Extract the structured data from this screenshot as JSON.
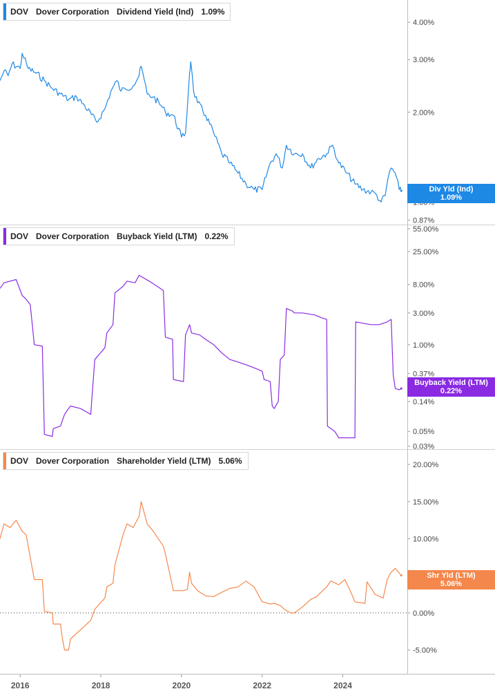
{
  "chart_data": [
    {
      "type": "line",
      "ticker": "DOV",
      "company": "Dover Corporation",
      "metric": "Dividend Yield (Ind)",
      "current_value": "1.09%",
      "color": "#1e88e5",
      "scale": "log",
      "badge": {
        "line1": "Div Yld (Ind)",
        "line2": "1.09%"
      },
      "y_ticks": [
        "4.00%",
        "3.00%",
        "2.00%",
        "1.00%",
        "0.87%"
      ],
      "ylim": [
        0.84,
        4.6
      ],
      "xlim": [
        2015.5,
        2025.6
      ],
      "series": [
        {
          "x": [
            2015.5,
            2015.6,
            2015.7,
            2015.8,
            2016.0,
            2016.05,
            2016.2,
            2016.4,
            2016.6,
            2016.8,
            2017.0,
            2017.2,
            2017.4,
            2017.6,
            2017.9,
            2018.1,
            2018.25,
            2018.4,
            2018.5,
            2018.6,
            2018.8,
            2018.95,
            2019.0,
            2019.15,
            2019.3,
            2019.5,
            2019.6,
            2019.8,
            2020.0,
            2020.1,
            2020.2,
            2020.23,
            2020.3,
            2020.4,
            2020.6,
            2020.8,
            2021.0,
            2021.2,
            2021.4,
            2021.6,
            2021.8,
            2022.0,
            2022.2,
            2022.35,
            2022.5,
            2022.6,
            2022.8,
            2023.0,
            2023.2,
            2023.4,
            2023.6,
            2023.75,
            2023.9,
            2024.1,
            2024.3,
            2024.5,
            2024.7,
            2024.8,
            2024.95,
            2025.05,
            2025.12,
            2025.2,
            2025.3,
            2025.4,
            2025.45
          ],
          "values": [
            2.55,
            2.75,
            2.65,
            2.9,
            2.8,
            3.15,
            2.8,
            2.7,
            2.55,
            2.4,
            2.3,
            2.2,
            2.25,
            2.1,
            1.85,
            2.05,
            2.35,
            2.55,
            2.35,
            2.4,
            2.45,
            2.65,
            2.85,
            2.3,
            2.25,
            2.1,
            2.0,
            1.95,
            1.65,
            1.7,
            2.7,
            2.95,
            2.35,
            2.15,
            1.95,
            1.7,
            1.45,
            1.35,
            1.25,
            1.15,
            1.1,
            1.1,
            1.35,
            1.45,
            1.3,
            1.55,
            1.45,
            1.45,
            1.3,
            1.4,
            1.45,
            1.55,
            1.35,
            1.25,
            1.15,
            1.1,
            1.08,
            1.07,
            1.0,
            1.05,
            1.2,
            1.3,
            1.25,
            1.1,
            1.09
          ]
        }
      ]
    },
    {
      "type": "line",
      "ticker": "DOV",
      "company": "Dover Corporation",
      "metric": "Buyback Yield (LTM)",
      "current_value": "0.22%",
      "color": "#8a2be2",
      "scale": "log",
      "badge": {
        "line1": "Buyback Yield (LTM)",
        "line2": "0.22%"
      },
      "y_ticks": [
        "55.00%",
        "25.00%",
        "8.00%",
        "3.00%",
        "1.00%",
        "0.37%",
        "0.14%",
        "0.05%",
        "0.03%"
      ],
      "ylim": [
        0.027,
        55
      ],
      "xlim": [
        2015.5,
        2025.6
      ],
      "series": [
        {
          "x": [
            2015.5,
            2015.6,
            2015.9,
            2016.05,
            2016.15,
            2016.25,
            2016.35,
            2016.55,
            2016.6,
            2016.8,
            2016.82,
            2017.0,
            2017.1,
            2017.2,
            2017.25,
            2017.5,
            2017.75,
            2017.85,
            2018.1,
            2018.15,
            2018.3,
            2018.35,
            2018.55,
            2018.65,
            2018.85,
            2018.95,
            2019.2,
            2019.4,
            2019.55,
            2019.6,
            2019.78,
            2019.8,
            2020.05,
            2020.1,
            2020.2,
            2020.25,
            2020.45,
            2020.6,
            2020.8,
            2021.0,
            2021.2,
            2021.4,
            2021.6,
            2021.8,
            2022.0,
            2022.05,
            2022.2,
            2022.25,
            2022.3,
            2022.4,
            2022.45,
            2022.55,
            2022.6,
            2022.75,
            2022.8,
            2023.0,
            2023.3,
            2023.5,
            2023.6,
            2023.62,
            2023.8,
            2023.9,
            2023.95,
            2024.3,
            2024.32,
            2024.5,
            2024.7,
            2024.9,
            2025.1,
            2025.2,
            2025.25,
            2025.3,
            2025.4,
            2025.45
          ],
          "values": [
            7.0,
            8.5,
            9.5,
            5.5,
            4.8,
            4.0,
            1.0,
            0.95,
            0.045,
            0.042,
            0.055,
            0.06,
            0.09,
            0.11,
            0.12,
            0.11,
            0.09,
            0.6,
            0.9,
            1.5,
            2.0,
            6.0,
            7.5,
            9.0,
            8.5,
            11.0,
            9.0,
            7.5,
            6.5,
            1.3,
            1.2,
            0.3,
            0.28,
            1.4,
            2.0,
            1.5,
            1.4,
            1.2,
            1.0,
            0.75,
            0.6,
            0.55,
            0.5,
            0.45,
            0.4,
            0.3,
            0.28,
            0.12,
            0.11,
            0.14,
            0.6,
            0.7,
            3.5,
            3.2,
            3.0,
            3.0,
            2.8,
            2.5,
            2.4,
            0.06,
            0.05,
            0.04,
            0.04,
            0.04,
            2.2,
            2.1,
            2.0,
            2.0,
            2.2,
            2.4,
            0.35,
            0.22,
            0.21,
            0.22
          ]
        }
      ]
    },
    {
      "type": "line",
      "ticker": "DOV",
      "company": "Dover Corporation",
      "metric": "Shareholder Yield (LTM)",
      "current_value": "5.06%",
      "color": "#f4874b",
      "scale": "linear",
      "badge": {
        "line1": "Shr Yld (LTM)",
        "line2": "5.06%"
      },
      "y_ticks": [
        "20.00%",
        "15.00%",
        "10.00%",
        "0.00%",
        "-5.00%"
      ],
      "ylim": [
        -8.2,
        21.5
      ],
      "zero_line": true,
      "x_ticks": [
        "2016",
        "2018",
        "2020",
        "2022",
        "2024"
      ],
      "x_tick_values": [
        2016,
        2018,
        2020,
        2022,
        2024
      ],
      "xlim": [
        2015.5,
        2025.6
      ],
      "series": [
        {
          "x": [
            2015.5,
            2015.6,
            2015.75,
            2015.9,
            2016.05,
            2016.15,
            2016.25,
            2016.35,
            2016.55,
            2016.6,
            2016.8,
            2016.82,
            2017.0,
            2017.05,
            2017.1,
            2017.2,
            2017.25,
            2017.45,
            2017.55,
            2017.75,
            2017.85,
            2018.1,
            2018.15,
            2018.3,
            2018.35,
            2018.55,
            2018.65,
            2018.8,
            2018.95,
            2019.0,
            2019.15,
            2019.3,
            2019.55,
            2019.6,
            2019.8,
            2020.05,
            2020.15,
            2020.2,
            2020.25,
            2020.4,
            2020.6,
            2020.8,
            2021.0,
            2021.2,
            2021.4,
            2021.6,
            2021.8,
            2022.0,
            2022.2,
            2022.3,
            2022.45,
            2022.55,
            2022.7,
            2022.8,
            2023.0,
            2023.2,
            2023.35,
            2023.5,
            2023.6,
            2023.7,
            2023.9,
            2024.05,
            2024.2,
            2024.3,
            2024.55,
            2024.6,
            2024.8,
            2025.0,
            2025.1,
            2025.2,
            2025.3,
            2025.45
          ],
          "values": [
            10.0,
            12.0,
            11.5,
            12.5,
            11.0,
            10.5,
            7.5,
            4.5,
            4.5,
            0.2,
            0.0,
            -1.5,
            -1.5,
            -3.5,
            -5.0,
            -5.0,
            -3.5,
            -2.5,
            -2.0,
            -1.0,
            0.5,
            2.0,
            3.5,
            4.0,
            6.5,
            10.5,
            12.0,
            11.5,
            13.0,
            15.0,
            12.0,
            11.0,
            9.0,
            8.0,
            3.0,
            3.0,
            3.2,
            5.5,
            4.0,
            3.0,
            2.3,
            2.2,
            2.8,
            3.3,
            3.5,
            4.3,
            3.5,
            1.5,
            1.2,
            1.3,
            1.0,
            0.5,
            0.0,
            0.0,
            0.8,
            1.8,
            2.2,
            3.0,
            3.5,
            4.3,
            3.8,
            4.5,
            2.8,
            1.5,
            1.3,
            4.2,
            2.5,
            2.0,
            4.5,
            5.5,
            6.0,
            5.06
          ]
        }
      ]
    }
  ]
}
